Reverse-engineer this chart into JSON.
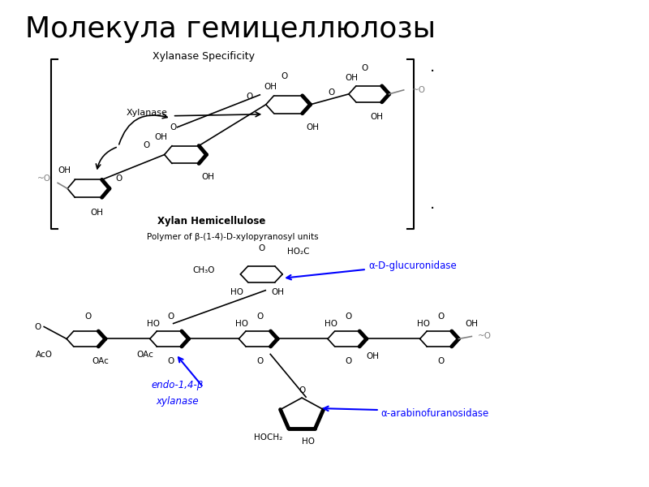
{
  "title": "Молекула гемицеллюлозы",
  "title_fontsize": 26,
  "background_color": "#ffffff",
  "upper_subtitle": "Xylanase Specificity",
  "lower_subtitle": "Polymer of β-(1-4)-D-xylopyranosyl units",
  "xylan_label": "Xylan Hemicellulose",
  "label_glucuronidase": "α-D-glucuronidase",
  "label_xylanase": "endo-1,4-β\nxylanase",
  "label_arabino": "α-arabinofuranosidase",
  "label_xylanase_top": "Xylanase",
  "fs": 7.5,
  "lw": 1.2,
  "lw_thick": 3.5
}
